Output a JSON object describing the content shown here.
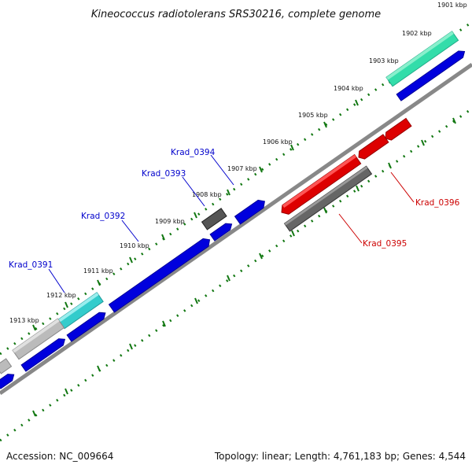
{
  "title": "Kineococcus radiotolerans SRS30216, complete genome",
  "footer": {
    "accession": "Accession: NC_009664",
    "summary": "Topology: linear; Length: 4,761,183 bp; Genes: 4,544"
  },
  "ruler_labels": [
    "1901 kbp",
    "1902 kbp",
    "1903 kbp",
    "1904 kbp",
    "1905 kbp",
    "1906 kbp",
    "1907 kbp",
    "1908 kbp",
    "1909 kbp",
    "1910 kbp",
    "1911 kbp",
    "1912 kbp",
    "1913 kbp"
  ],
  "gene_labels": {
    "Krad_0391": "Krad_0391",
    "Krad_0392": "Krad_0392",
    "Krad_0393": "Krad_0393",
    "Krad_0394": "Krad_0394",
    "Krad_0395": "Krad_0395",
    "Krad_0396": "Krad_0396"
  },
  "colors": {
    "forward_cds": "#0000dd",
    "reverse_cds_highlight": "#dd0000",
    "gene_teal": "#33cccc",
    "gene_green": "#33ddaa",
    "gene_grey": "#bbbbbb",
    "gene_dark_grey": "#666666",
    "backbone": "#888888",
    "ruler_tick": "#117711",
    "label_blue": "#0000cc",
    "label_red": "#cc0000"
  }
}
